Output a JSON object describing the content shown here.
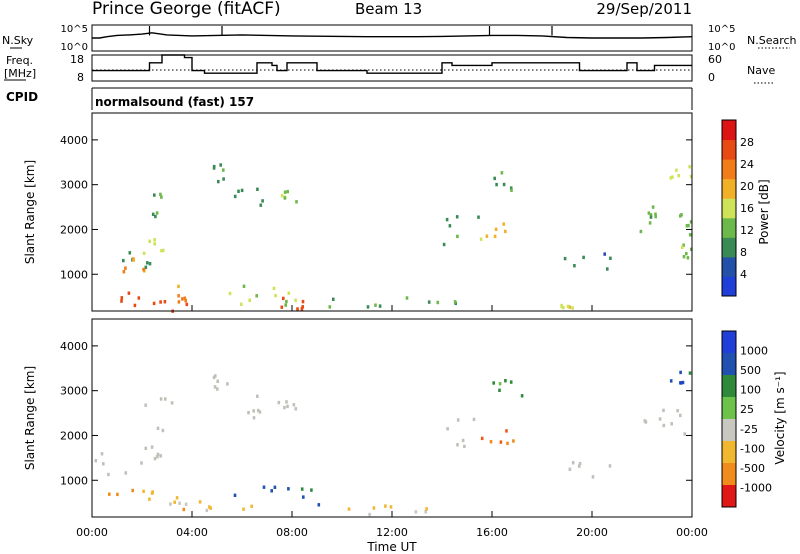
{
  "header": {
    "station": "Prince George (fitACF)",
    "beam": "Beam 13",
    "date": "29/Sep/2011"
  },
  "noise_panel": {
    "left_label": "N.Sky",
    "right_label": "N.Search",
    "ticks_left": [
      "10^5",
      "10^0"
    ],
    "ticks_right": [
      "10^5",
      "10^0"
    ]
  },
  "freq_panel": {
    "left_label_1": "Freq.",
    "left_label_2": "[MHz]",
    "right_label": "Nave",
    "ticks_left": [
      "18",
      "8"
    ],
    "ticks_right": [
      "60",
      "0"
    ],
    "cpid_label": "CPID",
    "cpid_text": "normalsound (fast) 157"
  },
  "colors": {
    "power": [
      "#1f3fd8",
      "#2550a8",
      "#3a8a55",
      "#6db84a",
      "#cfe35a",
      "#f0b028",
      "#f07d1a",
      "#e84a14",
      "#dc1414"
    ],
    "velocity": [
      "#1f3fd8",
      "#2050b0",
      "#2e8a3a",
      "#6cc24a",
      "#c8c8c0",
      "#f0b830",
      "#f08c1e",
      "#ef5a14",
      "#e01818"
    ],
    "ground_scatter": "#c0c0b8"
  },
  "power_scale": {
    "label": "Power [dB]",
    "ticks": [
      "4",
      "8",
      "12",
      "16",
      "20",
      "24",
      "28"
    ]
  },
  "velocity_scale": {
    "label": "Velocity [m s⁻¹]",
    "ticks": [
      "1000",
      "500",
      "100",
      "25",
      "-25",
      "-100",
      "-500",
      "-1000"
    ]
  },
  "axes": {
    "ylabel": "Slant Range [km]",
    "xlabel": "Time UT",
    "yticks": [
      "1000",
      "2000",
      "3000",
      "4000"
    ],
    "xticks": [
      "00:00",
      "04:00",
      "08:00",
      "12:00",
      "16:00",
      "20:00",
      "00:00"
    ]
  },
  "chart_data": [
    {
      "type": "line",
      "name": "noise",
      "x_hours": [
        0,
        0.3,
        0.6,
        1.0,
        1.5,
        2.0,
        2.4,
        3.0,
        3.5,
        4.0,
        5.0,
        6.0,
        7.0,
        8.0,
        9.0,
        10.0,
        11.0,
        12.0,
        13.0,
        14.0,
        15.0,
        16.0,
        17.0,
        18.0,
        19.0,
        20.0,
        21.0,
        22.0,
        23.0,
        24.0
      ],
      "y": [
        0.5,
        0.5,
        0.55,
        0.6,
        0.62,
        0.65,
        0.7,
        0.62,
        0.6,
        0.58,
        0.6,
        0.62,
        0.6,
        0.58,
        0.57,
        0.56,
        0.55,
        0.55,
        0.55,
        0.56,
        0.58,
        0.6,
        0.6,
        0.58,
        0.52,
        0.5,
        0.5,
        0.5,
        0.52,
        0.55
      ],
      "ylim_text": [
        "10^0",
        "10^5"
      ]
    },
    {
      "type": "line",
      "name": "frequency",
      "x_hours": [
        0,
        1.5,
        2.3,
        2.5,
        2.8,
        3.7,
        4.0,
        4.5,
        5.2,
        5.8,
        6.6,
        7.2,
        7.4,
        7.8,
        8.4,
        9.0,
        9.6,
        10.2,
        11.0,
        12.0,
        13.0,
        14.0,
        14.4,
        15.2,
        16.0,
        17.0,
        18.0,
        19.5,
        20.0,
        21.0,
        21.4,
        21.8,
        22.5,
        23.0,
        24.0
      ],
      "mhz": [
        12,
        12,
        15,
        15,
        18,
        17,
        12,
        11,
        11,
        11,
        15,
        14,
        12,
        15,
        15,
        12,
        12,
        12,
        11,
        11,
        11,
        15,
        14,
        14,
        15,
        15,
        15,
        12,
        12,
        12,
        15,
        12,
        14,
        14,
        14
      ],
      "ylim": [
        8,
        18
      ]
    },
    {
      "type": "heatmap",
      "name": "power",
      "x_range_hours": [
        0,
        24
      ],
      "y_range_km": [
        180,
        4600
      ],
      "value_scale_db": [
        0,
        30
      ],
      "features": [
        {
          "t": [
            0.0,
            2.3
          ],
          "r": [
            1150,
            1650
          ],
          "v": 9
        },
        {
          "t": [
            0.8,
            2.2
          ],
          "r": [
            1000,
            1400
          ],
          "v": 22
        },
        {
          "t": [
            1.8,
            2.8
          ],
          "r": [
            1500,
            1900
          ],
          "v": 16
        },
        {
          "t": [
            2.2,
            3.2
          ],
          "r": [
            2100,
            2900
          ],
          "v": 10
        },
        {
          "t": [
            0.3,
            3.8
          ],
          "r": [
            200,
            700
          ],
          "v": 26
        },
        {
          "t": [
            3.0,
            4.0
          ],
          "r": [
            400,
            900
          ],
          "v": 22
        },
        {
          "t": [
            4.8,
            5.6
          ],
          "r": [
            3000,
            3500
          ],
          "v": 8
        },
        {
          "t": [
            5.6,
            7.2
          ],
          "r": [
            2400,
            3000
          ],
          "v": 7
        },
        {
          "t": [
            7.4,
            8.2
          ],
          "r": [
            2600,
            2900
          ],
          "v": 12
        },
        {
          "t": [
            5.0,
            8.5
          ],
          "r": [
            250,
            800
          ],
          "v": 14
        },
        {
          "t": [
            7.2,
            8.4
          ],
          "r": [
            250,
            500
          ],
          "v": 26
        },
        {
          "t": [
            8.5,
            14.5
          ],
          "r": [
            250,
            550
          ],
          "v": 9
        },
        {
          "t": [
            14.0,
            15.5
          ],
          "r": [
            1700,
            2400
          ],
          "v": 9
        },
        {
          "t": [
            15.5,
            17.0
          ],
          "r": [
            1800,
            2200
          ],
          "v": 18
        },
        {
          "t": [
            16.0,
            17.4
          ],
          "r": [
            2800,
            3600
          ],
          "v": 10
        },
        {
          "t": [
            18.6,
            19.2
          ],
          "r": [
            280,
            400
          ],
          "v": 16
        },
        {
          "t": [
            18.8,
            21.3
          ],
          "r": [
            1100,
            1500
          ],
          "v": 7
        },
        {
          "t": [
            21.8,
            22.8
          ],
          "r": [
            1900,
            2500
          ],
          "v": 10
        },
        {
          "t": [
            22.0,
            24.0
          ],
          "r": [
            1900,
            2600
          ],
          "v": 12
        },
        {
          "t": [
            23.0,
            24.0
          ],
          "r": [
            3100,
            3500
          ],
          "v": 15
        },
        {
          "t": [
            23.5,
            24.0
          ],
          "r": [
            1400,
            1700
          ],
          "v": 12
        }
      ]
    },
    {
      "type": "heatmap",
      "name": "velocity",
      "x_range_hours": [
        0,
        24
      ],
      "y_range_km": [
        180,
        4600
      ],
      "value_scale_ms": [
        -1000,
        1000
      ],
      "features": [
        {
          "t": [
            0.0,
            2.2
          ],
          "r": [
            1150,
            1650
          ],
          "v": 0,
          "gs": true
        },
        {
          "t": [
            1.8,
            2.8
          ],
          "r": [
            1500,
            1900
          ],
          "v": 0,
          "gs": true
        },
        {
          "t": [
            2.0,
            3.2
          ],
          "r": [
            2100,
            2900
          ],
          "v": 0,
          "gs": true
        },
        {
          "t": [
            0.4,
            3.5
          ],
          "r": [
            500,
            900
          ],
          "v": -60
        },
        {
          "t": [
            3.0,
            4.0
          ],
          "r": [
            300,
            700
          ],
          "v": -60
        },
        {
          "t": [
            4.2,
            6.5
          ],
          "r": [
            350,
            600
          ],
          "v": -40
        },
        {
          "t": [
            5.5,
            9.2
          ],
          "r": [
            450,
            900
          ],
          "v": 120
        },
        {
          "t": [
            4.8,
            5.6
          ],
          "r": [
            3000,
            3500
          ],
          "v": 0,
          "gs": true
        },
        {
          "t": [
            5.6,
            7.2
          ],
          "r": [
            2400,
            3000
          ],
          "v": 0,
          "gs": true
        },
        {
          "t": [
            7.4,
            8.2
          ],
          "r": [
            2600,
            2900
          ],
          "v": 0,
          "gs": true
        },
        {
          "t": [
            9.0,
            14.5
          ],
          "r": [
            250,
            500
          ],
          "v": -40
        },
        {
          "t": [
            14.0,
            15.5
          ],
          "r": [
            1700,
            2400
          ],
          "v": 0,
          "gs": true
        },
        {
          "t": [
            15.5,
            17.0
          ],
          "r": [
            1800,
            2250
          ],
          "v": -300
        },
        {
          "t": [
            16.0,
            17.4
          ],
          "r": [
            2800,
            3600
          ],
          "v": 80
        },
        {
          "t": [
            18.8,
            21.3
          ],
          "r": [
            1100,
            1500
          ],
          "v": 0,
          "gs": true
        },
        {
          "t": [
            21.8,
            24.0
          ],
          "r": [
            1900,
            2600
          ],
          "v": 0,
          "gs": true
        },
        {
          "t": [
            23.0,
            24.0
          ],
          "r": [
            3100,
            3500
          ],
          "v": 150
        }
      ]
    }
  ]
}
